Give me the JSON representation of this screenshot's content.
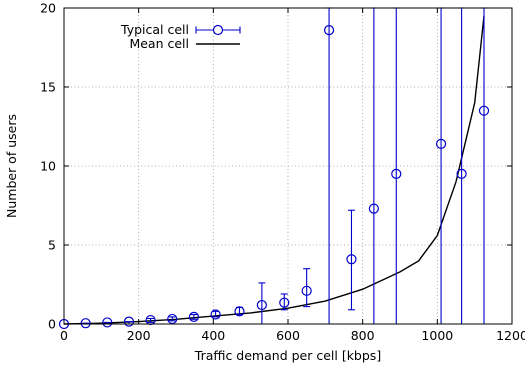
{
  "chart_data": {
    "type": "line",
    "xlabel": "Traffic demand per cell [kbps]",
    "ylabel": "Number of users",
    "xlim": [
      0,
      1200
    ],
    "ylim": [
      0,
      20
    ],
    "xticks": [
      0,
      200,
      400,
      600,
      800,
      1000,
      1200
    ],
    "yticks": [
      0,
      5,
      10,
      15,
      20
    ],
    "grid": true,
    "legend_position": "top-left",
    "series": [
      {
        "name": "Typical cell",
        "style": "points-with-errorbars",
        "color": "#0000cc",
        "x": [
          0,
          58,
          116,
          174,
          232,
          290,
          348,
          406,
          470,
          530,
          590,
          650,
          710,
          770,
          830,
          890,
          1010,
          1065,
          1125
        ],
        "y": [
          0,
          0.05,
          0.1,
          0.15,
          0.25,
          0.32,
          0.45,
          0.6,
          0.8,
          1.2,
          1.35,
          2.1,
          18.6,
          4.1,
          7.3,
          9.5,
          11.4,
          9.5,
          13.5
        ],
        "err_low": [
          0,
          0,
          0,
          0,
          0.1,
          0.2,
          0.3,
          0.45,
          0.6,
          0,
          0.9,
          1.1,
          0,
          0.9,
          0,
          0,
          0,
          0,
          0
        ],
        "err_high": [
          0,
          0.05,
          0.1,
          0.15,
          0.35,
          0.45,
          0.6,
          0.8,
          1.05,
          2.6,
          1.9,
          3.5,
          20,
          7.2,
          20,
          20,
          20,
          20,
          20
        ]
      },
      {
        "name": "Mean cell",
        "style": "line",
        "color": "#000000",
        "x": [
          0,
          100,
          200,
          300,
          400,
          500,
          600,
          700,
          800,
          900,
          950,
          1000,
          1050,
          1100,
          1125
        ],
        "y": [
          0,
          0.05,
          0.15,
          0.3,
          0.5,
          0.7,
          1.0,
          1.45,
          2.2,
          3.3,
          4.0,
          5.6,
          9.0,
          14.0,
          19.5
        ]
      }
    ]
  }
}
